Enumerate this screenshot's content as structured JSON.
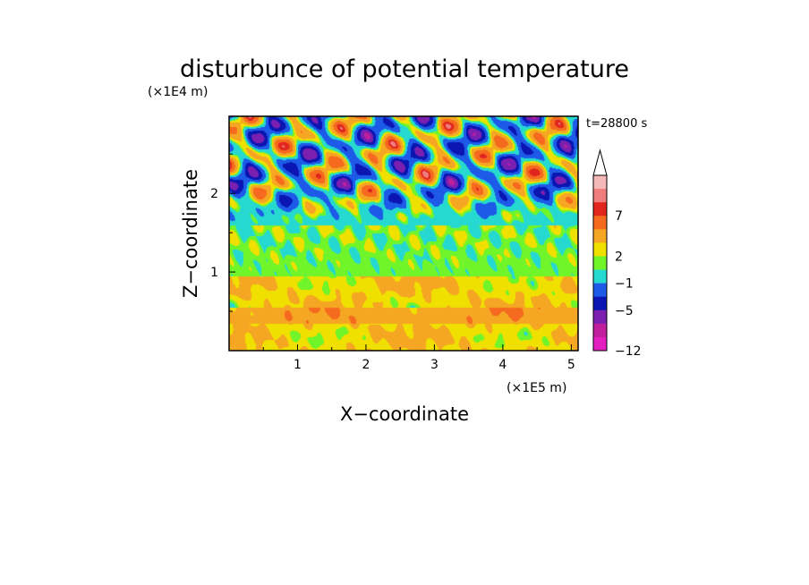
{
  "chart_data": {
    "type": "heatmap",
    "title": "disturbunce of potential temperature",
    "time_label": "t=28800 s",
    "xlabel": "X−coordinate",
    "ylabel": "Z−coordinate",
    "x_unit": "(×1E5 m)",
    "y_unit": "(×1E4 m)",
    "xlim": [
      0.0,
      5.1
    ],
    "ylim": [
      0.0,
      2.98
    ],
    "x_ticks": [
      "1",
      "2",
      "3",
      "4",
      "5"
    ],
    "y_ticks": [
      "1",
      "2"
    ],
    "colorbar": {
      "label_values": [
        7,
        2,
        -1,
        -5,
        -12
      ],
      "labels": [
        "7",
        "2",
        "−1",
        "−5",
        "−12"
      ],
      "extend": "max",
      "colors_top_to_bottom": [
        "#f4b8b8",
        "#f07d7d",
        "#e0261f",
        "#f56a1e",
        "#f5a623",
        "#f0e000",
        "#6ff52a",
        "#26d9d0",
        "#1d5ae8",
        "#0b16b2",
        "#7b1fb0",
        "#c0209e",
        "#e41fbf"
      ]
    },
    "field_summary": [
      {
        "z_range": [
          0.0,
          0.95
        ],
        "description": "positive 1–3 (yellow/orange), warm layer near surface"
      },
      {
        "z_range": [
          0.95,
          1.6
        ],
        "description": "near zero (green/yellow)"
      },
      {
        "z_range": [
          1.6,
          2.98
        ],
        "description": "wave pattern alternating −6 to 8 (blue to red)"
      }
    ]
  }
}
